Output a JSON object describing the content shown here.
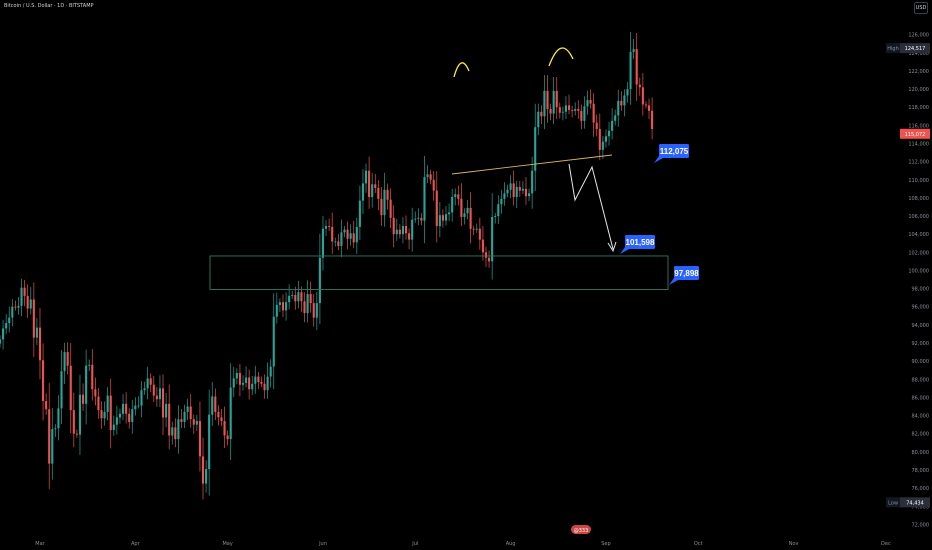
{
  "header": {
    "symbol_title": "Bitcoin / U.S. Dollar · 1D · BITSTAMP",
    "currency_button": "USD"
  },
  "price_axis": {
    "high_label": "High",
    "high_value": "124,517",
    "low_label": "Low",
    "low_value": "74,434",
    "current_value": "115,072"
  },
  "event_badge": "@333",
  "annotations": {
    "labels": [
      {
        "text": "112,075",
        "price": 112075
      },
      {
        "text": "101,598",
        "price": 101598
      },
      {
        "text": "97,898",
        "price": 97898
      }
    ]
  },
  "colors": {
    "up": "#26a69a",
    "down": "#ef5350",
    "label_bg": "#2962ff",
    "zone": "#2e7d6a",
    "neckline": "#d6b66b",
    "heads": "#ffeb3b"
  },
  "chart_data": {
    "type": "candlestick",
    "title": "Bitcoin / U.S. Dollar · 1D · BITSTAMP",
    "y_ticks": [
      72000,
      74000,
      76000,
      78000,
      80000,
      82000,
      84000,
      86000,
      88000,
      90000,
      92000,
      94000,
      96000,
      98000,
      100000,
      102000,
      104000,
      106000,
      108000,
      110000,
      112000,
      114000,
      116000,
      118000,
      120000,
      122000,
      124000,
      126000
    ],
    "y_tick_labels": [
      "72,000",
      "74,000",
      "76,000",
      "78,000",
      "80,000",
      "82,000",
      "84,000",
      "86,000",
      "88,000",
      "90,000",
      "92,000",
      "94,000",
      "96,000",
      "98,000",
      "100,000",
      "102,000",
      "104,000",
      "106,000",
      "108,000",
      "110,000",
      "112,000",
      "114,000",
      "116,000",
      "118,000",
      "120,000",
      "122,000",
      "124,000",
      "126,000"
    ],
    "ylim": [
      70500,
      128500
    ],
    "x_labels": [
      "Mar",
      "Apr",
      "May",
      "Jun",
      "Jul",
      "Aug",
      "Sep",
      "Oct",
      "Nov",
      "Dec"
    ],
    "x_label_days": [
      0,
      31,
      61,
      92,
      122,
      153,
      184,
      214,
      245,
      275
    ],
    "x_day_range": [
      -13,
      290
    ],
    "series_closes": [
      92400,
      93600,
      94200,
      94800,
      96000,
      95900,
      96100,
      98100,
      97200,
      95800,
      96800,
      92600,
      93700,
      90100,
      85600,
      84700,
      78700,
      82500,
      82600,
      84800,
      88900,
      91000,
      89500,
      84600,
      82000,
      81900,
      86300,
      85300,
      89500,
      89600,
      86900,
      86100,
      84600,
      83700,
      84400,
      86200,
      82400,
      83000,
      83800,
      84200,
      85300,
      84200,
      83300,
      84700,
      85100,
      85100,
      86800,
      87000,
      88100,
      87400,
      86200,
      85800,
      87000,
      83800,
      85300,
      81800,
      82700,
      81400,
      83600,
      83300,
      84400,
      85000,
      83600,
      83000,
      83400,
      79500,
      76500,
      78100,
      84100,
      86100,
      84400,
      83800,
      83400,
      81800,
      81400,
      87100,
      88100,
      88700,
      87400,
      87600,
      88200,
      86900,
      87500,
      88300,
      87700,
      87500,
      86800,
      88300,
      89400,
      94900,
      96200,
      96500,
      95600,
      96500,
      97200,
      97300,
      96600,
      97600,
      96600,
      95300,
      97400,
      96400,
      94800,
      96400,
      101400,
      104600,
      104900,
      104800,
      103200,
      103200,
      102700,
      104200,
      104500,
      103500,
      104100,
      103100,
      104800,
      107700,
      109600,
      111000,
      108100,
      109500,
      109100,
      107900,
      106100,
      108900,
      107800,
      105800,
      104000,
      104500,
      104000,
      104900,
      104100,
      103400,
      105600,
      105700,
      105800,
      105500,
      110300,
      110600,
      110000,
      108800,
      104900,
      106100,
      105500,
      106200,
      106400,
      108100,
      108400,
      107900,
      105900,
      106300,
      106900,
      104600,
      104500,
      104600,
      103400,
      102000,
      101400,
      101000,
      105900,
      106000,
      107300,
      107900,
      108500,
      108900,
      109600,
      108100,
      109200,
      108800,
      109000,
      108200,
      108500,
      111000,
      115800,
      117500,
      117000,
      119800,
      117800,
      117300,
      119800,
      118000,
      117400,
      117500,
      118200,
      117700,
      117600,
      117800,
      117600,
      116500,
      118100,
      118800,
      118400,
      116300,
      115600,
      113300,
      114200,
      114800,
      115400,
      116500,
      117100,
      118700,
      118200,
      119300,
      120000,
      124100,
      124400,
      120500,
      120200,
      118300,
      118200,
      117600,
      115600
    ],
    "annotations": [
      "112,075",
      "101,598",
      "97,898"
    ],
    "zone_range": [
      97898,
      101598
    ]
  }
}
